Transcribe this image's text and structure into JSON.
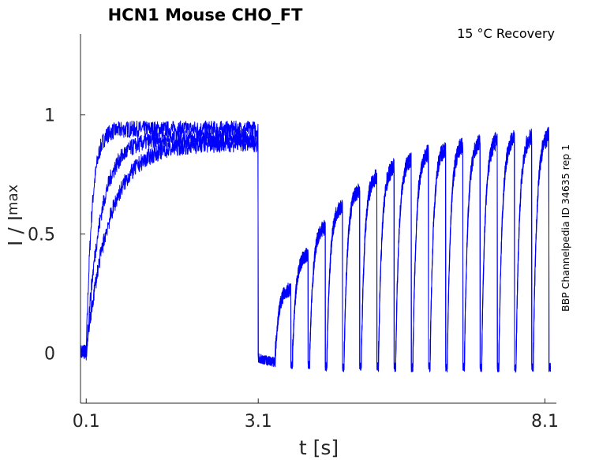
{
  "chart_data": {
    "type": "line",
    "title": "HCN1  Mouse  CHO_FT",
    "annotation": "15 °C  Recovery",
    "side_note": "BBP Channelpedia ID 34635 rep 1",
    "xlabel": "t [s]",
    "ylabel_main": "I / I",
    "ylabel_sub": "max",
    "xlim": [
      0.0,
      8.3
    ],
    "ylim": [
      -0.21,
      1.34
    ],
    "xticks": [
      {
        "value": 0.1,
        "label": "0.1"
      },
      {
        "value": 3.1,
        "label": "3.1"
      },
      {
        "value": 8.1,
        "label": "8.1"
      }
    ],
    "yticks": [
      {
        "value": 0,
        "label": "0"
      },
      {
        "value": 0.5,
        "label": "0.5"
      },
      {
        "value": 1,
        "label": "1"
      }
    ],
    "grid": false,
    "line_color": "#0000ff",
    "series": [
      {
        "activation_start_s": 0.1,
        "activation_tau_s": 0.1,
        "plateau": 0.94,
        "step_down_s": 3.1,
        "recovery_delays_s": [
          0.3,
          0.6,
          0.9,
          1.2,
          1.5,
          1.8,
          2.1,
          2.4,
          2.7,
          3.0,
          3.3,
          3.6,
          3.9,
          4.2,
          4.5,
          4.8
        ],
        "recovery_peak": 0.87
      },
      {
        "activation_start_s": 0.1,
        "activation_tau_s": 0.25,
        "plateau": 0.9,
        "step_down_s": 3.1,
        "recovery_delays_s": [
          0.3,
          0.6,
          0.9,
          1.2,
          1.5,
          1.8,
          2.1,
          2.4,
          2.7,
          3.0,
          3.3,
          3.6,
          3.9,
          4.2,
          4.5,
          4.8
        ],
        "recovery_peak": 0.86
      },
      {
        "activation_start_s": 0.1,
        "activation_tau_s": 0.4,
        "plateau": 0.88,
        "step_down_s": 3.1,
        "recovery_delays_s": [
          0.3,
          0.6,
          0.9,
          1.2,
          1.5,
          1.8,
          2.1,
          2.4,
          2.7,
          3.0,
          3.3,
          3.6,
          3.9,
          4.2,
          4.5,
          4.8
        ],
        "recovery_peak": 0.85
      }
    ]
  }
}
